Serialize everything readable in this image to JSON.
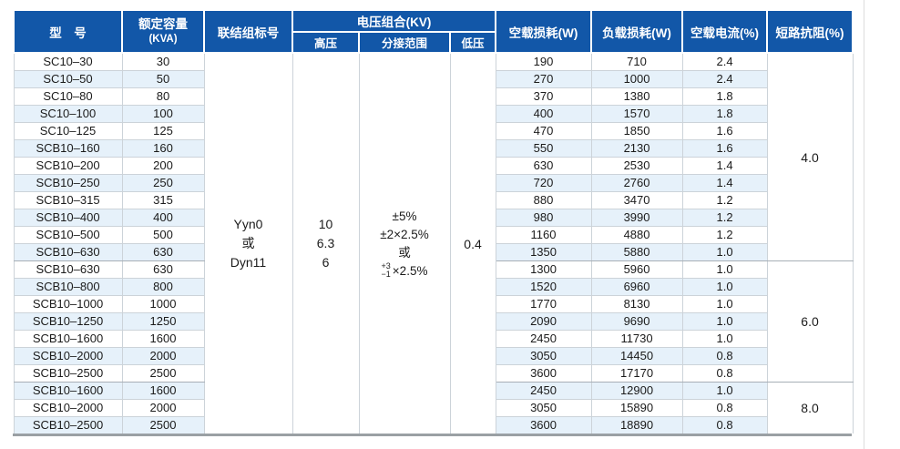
{
  "colors": {
    "header_bg": "#1257a8",
    "row_alt": "#e6f1fa",
    "grid_line": "#ccd3d9",
    "group_line": "#a7afb6",
    "bottom_rule": "#9aa0a4"
  },
  "table": {
    "headers": {
      "model": "型　号",
      "capacity_line1": "额定容量",
      "capacity_line2": "(KVA)",
      "connection": "联结组标号",
      "voltage_group": "电压组合(KV)",
      "hv": "高压",
      "tap_range": "分接范围",
      "lv": "低压",
      "no_load_loss": "空载损耗(W)",
      "load_loss": "负载损耗(W)",
      "no_load_current": "空载电流(%)",
      "impedance": "短路抗阻(%)"
    },
    "body_columns": [
      "型号",
      "额定容量(KVA)",
      "空载损耗(W)",
      "负载损耗(W)",
      "空载电流(%)"
    ],
    "merged": {
      "connection_lines": [
        "Yyn0",
        "或",
        "Dyn11"
      ],
      "hv_lines": [
        "10",
        "6.3",
        "6"
      ],
      "tap_lines": [
        "±5%",
        "±2×2.5%",
        "或",
        {
          "sup": "+3",
          "sub": "−1",
          "rest": "×2.5%"
        }
      ],
      "lv": "0.4"
    },
    "impedance_groups": [
      {
        "value": "4.0",
        "span": 12
      },
      {
        "value": "6.0",
        "span": 7
      },
      {
        "value": "8.0",
        "span": 3
      }
    ],
    "rows": [
      [
        "SC10–30",
        "30",
        "190",
        "710",
        "2.4"
      ],
      [
        "SC10–50",
        "50",
        "270",
        "1000",
        "2.4"
      ],
      [
        "SC10–80",
        "80",
        "370",
        "1380",
        "1.8"
      ],
      [
        "SC10–100",
        "100",
        "400",
        "1570",
        "1.8"
      ],
      [
        "SC10–125",
        "125",
        "470",
        "1850",
        "1.6"
      ],
      [
        "SCB10–160",
        "160",
        "550",
        "2130",
        "1.6"
      ],
      [
        "SCB10–200",
        "200",
        "630",
        "2530",
        "1.4"
      ],
      [
        "SCB10–250",
        "250",
        "720",
        "2760",
        "1.4"
      ],
      [
        "SCB10–315",
        "315",
        "880",
        "3470",
        "1.2"
      ],
      [
        "SCB10–400",
        "400",
        "980",
        "3990",
        "1.2"
      ],
      [
        "SCB10–500",
        "500",
        "1160",
        "4880",
        "1.2"
      ],
      [
        "SCB10–630",
        "630",
        "1350",
        "5880",
        "1.0"
      ],
      [
        "SCB10–630",
        "630",
        "1300",
        "5960",
        "1.0"
      ],
      [
        "SCB10–800",
        "800",
        "1520",
        "6960",
        "1.0"
      ],
      [
        "SCB10–1000",
        "1000",
        "1770",
        "8130",
        "1.0"
      ],
      [
        "SCB10–1250",
        "1250",
        "2090",
        "9690",
        "1.0"
      ],
      [
        "SCB10–1600",
        "1600",
        "2450",
        "11730",
        "1.0"
      ],
      [
        "SCB10–2000",
        "2000",
        "3050",
        "14450",
        "0.8"
      ],
      [
        "SCB10–2500",
        "2500",
        "3600",
        "17170",
        "0.8"
      ],
      [
        "SCB10–1600",
        "1600",
        "2450",
        "12900",
        "1.0"
      ],
      [
        "SCB10–2000",
        "2000",
        "3050",
        "15890",
        "0.8"
      ],
      [
        "SCB10–2500",
        "2500",
        "3600",
        "18890",
        "0.8"
      ]
    ]
  }
}
